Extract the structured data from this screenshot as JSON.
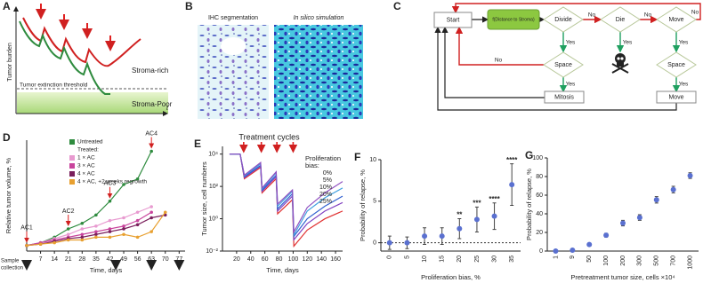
{
  "panels": [
    "A",
    "B",
    "C",
    "D",
    "E",
    "F",
    "G"
  ],
  "schematic": {
    "y_label": "Tumor burden",
    "x_label": "t",
    "rich": "Stroma-rich",
    "poor": "Stroma-Poor",
    "threshold": "Tumor extinction threshold"
  },
  "images": {
    "left": "IHC segmentation",
    "right": "In silico simulation"
  },
  "flowchart": {
    "nodes": [
      "Start",
      "f(Distance to Stroma)",
      "Divide",
      "Die",
      "Move",
      "Space",
      "Space",
      "Mitosis",
      "Move"
    ],
    "edge_labels": [
      "No",
      "No",
      "No",
      "Yes",
      "Yes",
      "Yes",
      "No",
      "Yes",
      "Yes"
    ]
  },
  "chart_data": [
    {
      "type": "line",
      "y_label": "Relative tumor volume, %",
      "x_label": "Time, days",
      "sample_label": [
        "Sample",
        "collection"
      ],
      "x": [
        0,
        7,
        14,
        21,
        28,
        35,
        42,
        49,
        56,
        63,
        70
      ],
      "xlim": [
        0,
        80
      ],
      "xticks": [
        7,
        14,
        21,
        28,
        35,
        42,
        49,
        56,
        63,
        70,
        77
      ],
      "ylim": [
        0,
        8
      ],
      "markers": true,
      "legend_heading": "Treated:",
      "series": [
        {
          "name": "Untreated",
          "color": "#2e8b3e",
          "values": [
            0.4,
            0.6,
            1.0,
            1.6,
            2.0,
            2.6,
            3.6,
            4.8,
            5.2,
            7.2,
            null
          ]
        },
        {
          "name": "1 × AC",
          "color": "#e89ad0",
          "values": [
            0.4,
            0.6,
            0.9,
            1.2,
            1.6,
            1.8,
            2.2,
            2.4,
            2.8,
            3.2,
            null
          ]
        },
        {
          "name": "3 × AC",
          "color": "#c8449c",
          "values": [
            0.4,
            0.6,
            0.8,
            1.0,
            1.2,
            1.4,
            1.6,
            1.8,
            2.2,
            2.8,
            null
          ]
        },
        {
          "name": "4 × AC",
          "color": "#7a1f5c",
          "values": [
            0.4,
            0.5,
            0.7,
            0.9,
            1.0,
            1.2,
            1.4,
            1.6,
            1.9,
            2.4,
            2.6
          ]
        },
        {
          "name": "4 × AC, +2 weeks regrowth",
          "color": "#e8a030",
          "values": [
            0.4,
            0.5,
            0.6,
            0.8,
            0.8,
            1.0,
            1.0,
            1.2,
            1.0,
            1.4,
            2.8
          ]
        }
      ],
      "annotations": [
        {
          "text": "AC1",
          "x": 0
        },
        {
          "text": "AC2",
          "x": 21
        },
        {
          "text": "AC3",
          "x": 42
        },
        {
          "text": "AC4",
          "x": 63
        }
      ],
      "sample_days": [
        0,
        45,
        63,
        77
      ]
    },
    {
      "type": "line",
      "y_label": "Tumor size, cell numbers",
      "x_label": "Time, days",
      "title": "Treatment cycles",
      "cycle_x": [
        30,
        55,
        77,
        100
      ],
      "legend_title": [
        "Proliferation",
        "bias:"
      ],
      "log": true,
      "markers": false,
      "x": [
        10,
        25,
        31,
        54,
        56,
        76,
        78,
        99,
        101,
        120,
        145,
        170
      ],
      "xlim": [
        0,
        170
      ],
      "xticks": [
        20,
        40,
        60,
        80,
        100,
        120,
        140,
        160
      ],
      "ylim": [
        0.01,
        30000
      ],
      "yticks": [
        {
          "value": 10000,
          "label": "10⁴"
        },
        {
          "value": 100,
          "label": "10²"
        },
        {
          "value": 1,
          "label": "10⁰"
        },
        {
          "value": 0.01,
          "label": "10⁻²"
        }
      ],
      "series": [
        {
          "name": "0%",
          "color": "#e03030",
          "values": [
            10000,
            10000,
            300,
            1500,
            40,
            300,
            2,
            15,
            0.02,
            0.2,
            1,
            3
          ]
        },
        {
          "name": "5%",
          "color": "#8040c0",
          "values": [
            10000,
            10000,
            350,
            1800,
            50,
            400,
            3,
            25,
            0.05,
            0.5,
            3,
            10
          ]
        },
        {
          "name": "10%",
          "color": "#3060d0",
          "values": [
            10000,
            10000,
            400,
            2000,
            60,
            500,
            4,
            35,
            0.08,
            1,
            6,
            25
          ]
        },
        {
          "name": "20%",
          "color": "#40a0e0",
          "values": [
            10000,
            10000,
            450,
            2500,
            70,
            700,
            6,
            50,
            0.1,
            3,
            20,
            80
          ]
        },
        {
          "name": "25%",
          "color": "#9050c0",
          "values": [
            10000,
            10000,
            500,
            3000,
            80,
            800,
            8,
            60,
            0.15,
            5,
            40,
            200
          ]
        }
      ]
    },
    {
      "type": "scatter",
      "y_label": "Probability of relapse, %",
      "x_label": "Proliferation bias, %",
      "color": "#5a70d0",
      "categories": [
        "0",
        "5",
        "10",
        "15",
        "20",
        "25",
        "30",
        "35"
      ],
      "values": [
        0,
        0,
        0.8,
        0.8,
        1.7,
        2.8,
        3.2,
        7
      ],
      "errors": [
        0.8,
        0.7,
        1,
        1,
        1.2,
        1.5,
        1.6,
        2.5
      ],
      "significance": [
        null,
        null,
        null,
        null,
        "**",
        "***",
        "****",
        "****"
      ],
      "ylim": [
        -1,
        10
      ],
      "yticks": [
        0,
        5,
        10
      ],
      "reference_line": 0
    },
    {
      "type": "scatter",
      "y_label": "Probability of relapse, %",
      "x_label": "Pretreatment tumor size, cells ×10⁴",
      "color": "#5a70d0",
      "categories": [
        "1",
        "9",
        "50",
        "100",
        "200",
        "300",
        "500",
        "700",
        "1000"
      ],
      "values": [
        0,
        1,
        7,
        17,
        30,
        36,
        55,
        66,
        81
      ],
      "errors": [
        1,
        1,
        1.5,
        2,
        3,
        3,
        3.5,
        3.5,
        3
      ],
      "ylim": [
        0,
        100
      ],
      "yticks": [
        0,
        20,
        40,
        60,
        80,
        100
      ]
    }
  ]
}
